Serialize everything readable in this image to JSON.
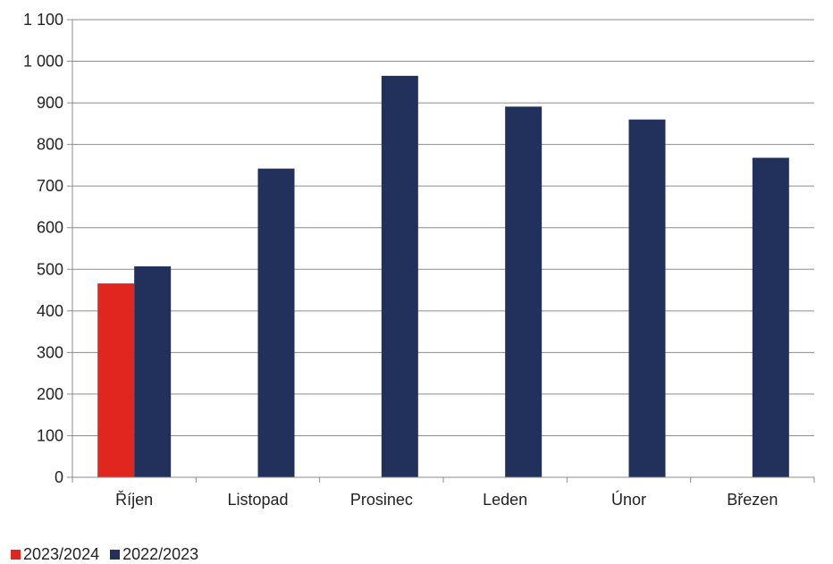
{
  "chart_data": {
    "type": "bar",
    "categories": [
      "Říjen",
      "Listopad",
      "Prosinec",
      "Leden",
      "Únor",
      "Březen"
    ],
    "series": [
      {
        "name": "2023/2024",
        "color": "#e0261f",
        "values": [
          466,
          null,
          null,
          null,
          null,
          null
        ]
      },
      {
        "name": "2022/2023",
        "color": "#22305c",
        "values": [
          507,
          742,
          965,
          891,
          860,
          768
        ]
      }
    ],
    "y_ticks": [
      "0",
      "100",
      "200",
      "300",
      "400",
      "500",
      "600",
      "700",
      "800",
      "900",
      "1 000",
      "1 100"
    ],
    "ylim": [
      0,
      1100
    ],
    "grid": true,
    "legend_position": "bottom-left"
  }
}
